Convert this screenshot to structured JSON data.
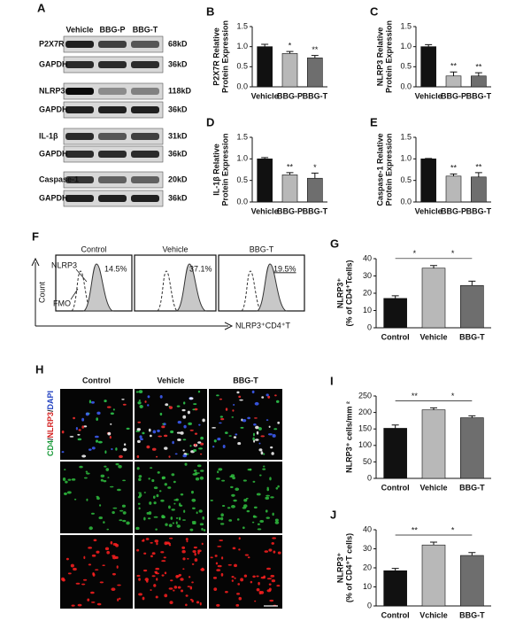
{
  "blot": {
    "panel": "A",
    "lanes": [
      "Vehicle",
      "BBG-P",
      "BBG-T"
    ],
    "rows": [
      {
        "label": "P2X7R",
        "size": "68kD"
      },
      {
        "label": "GAPDH",
        "size": "36kD"
      },
      {
        "label": "NLRP3",
        "size": "118kD"
      },
      {
        "label": "GAPDH",
        "size": "36kD"
      },
      {
        "label": "IL-1β",
        "size": "31kD"
      },
      {
        "label": "GAPDH",
        "size": "36kD"
      },
      {
        "label": "Caspase-1",
        "size": "20kD"
      },
      {
        "label": "GAPDH",
        "size": "36kD"
      }
    ]
  },
  "flow": {
    "panel": "F",
    "groups": [
      "Control",
      "Vehicle",
      "BBG-T"
    ],
    "percents": [
      "14.5%",
      "37.1%",
      "19.5%"
    ],
    "curve_labels": [
      "NLRP3",
      "FMO"
    ],
    "y_label": "Count",
    "x_label": "NLRP3⁺CD4⁺T"
  },
  "micro": {
    "panel": "H",
    "columns": [
      "Control",
      "Vehicle",
      "BBG-T"
    ],
    "row_label": [
      {
        "text": "CD4",
        "color": "#1a9a3a"
      },
      {
        "text": "/",
        "color": "#222222"
      },
      {
        "text": "NLRP3",
        "color": "#d42020"
      },
      {
        "text": "/",
        "color": "#222222"
      },
      {
        "text": "DAPI",
        "color": "#2040c0"
      }
    ]
  },
  "chart_data": [
    {
      "type": "bar",
      "panel": "B",
      "y_label": [
        "P2X7R Relative",
        "Protein Expression"
      ],
      "categories": [
        "Vehicle",
        "BBG-P",
        "BBG-T"
      ],
      "values": [
        1.0,
        0.83,
        0.72
      ],
      "errors": [
        0.06,
        0.05,
        0.06
      ],
      "colors": [
        "#111111",
        "#b8b8b8",
        "#6e6e6e"
      ],
      "sig": [
        null,
        "*",
        "**"
      ],
      "ylim": [
        0,
        1.5
      ],
      "yticks": [
        {
          "value": 0,
          "label": "0.0"
        },
        {
          "value": 0.5,
          "label": "0.5"
        },
        {
          "value": 1,
          "label": "1.0"
        },
        {
          "value": 1.5,
          "label": "1.5"
        }
      ]
    },
    {
      "type": "bar",
      "panel": "C",
      "y_label": [
        "NLRP3 Relative",
        "Protein Expression"
      ],
      "categories": [
        "Vehicle",
        "BBG-P",
        "BBG-T"
      ],
      "values": [
        1.0,
        0.27,
        0.27
      ],
      "errors": [
        0.05,
        0.1,
        0.08
      ],
      "colors": [
        "#111111",
        "#b8b8b8",
        "#6e6e6e"
      ],
      "sig": [
        null,
        "**",
        "**"
      ],
      "ylim": [
        0,
        1.5
      ],
      "yticks": [
        {
          "value": 0,
          "label": "0.0"
        },
        {
          "value": 0.5,
          "label": "0.5"
        },
        {
          "value": 1,
          "label": "1.0"
        },
        {
          "value": 1.5,
          "label": "1.5"
        }
      ]
    },
    {
      "type": "bar",
      "panel": "D",
      "y_label": [
        "IL-1β Relative",
        "Protein Expression"
      ],
      "categories": [
        "Vehicle",
        "BBG-P",
        "BBG-T"
      ],
      "values": [
        1.0,
        0.63,
        0.55
      ],
      "errors": [
        0.03,
        0.05,
        0.12
      ],
      "colors": [
        "#111111",
        "#b8b8b8",
        "#6e6e6e"
      ],
      "sig": [
        null,
        "**",
        "*"
      ],
      "ylim": [
        0,
        1.5
      ],
      "yticks": [
        {
          "value": 0,
          "label": "0.0"
        },
        {
          "value": 0.5,
          "label": "0.5"
        },
        {
          "value": 1,
          "label": "1.0"
        },
        {
          "value": 1.5,
          "label": "1.5"
        }
      ]
    },
    {
      "type": "bar",
      "panel": "E",
      "y_label": [
        "Caspase-1 Relative",
        "Protein Expression"
      ],
      "categories": [
        "Vehicle",
        "BBG-P",
        "BBG-T"
      ],
      "values": [
        1.0,
        0.6,
        0.58
      ],
      "errors": [
        0.01,
        0.05,
        0.1
      ],
      "colors": [
        "#111111",
        "#b8b8b8",
        "#6e6e6e"
      ],
      "sig": [
        null,
        "**",
        "**"
      ],
      "ylim": [
        0,
        1.5
      ],
      "yticks": [
        {
          "value": 0,
          "label": "0.0"
        },
        {
          "value": 0.5,
          "label": "0.5"
        },
        {
          "value": 1,
          "label": "1.0"
        },
        {
          "value": 1.5,
          "label": "1.5"
        }
      ]
    },
    {
      "type": "bar",
      "panel": "G",
      "y_label": [
        "NLRP3⁺",
        "(% of CD4⁺Tcells)"
      ],
      "categories": [
        "Control",
        "Vehicle",
        "BBG-T"
      ],
      "values": [
        17,
        34.5,
        24.5
      ],
      "errors": [
        1.5,
        1.5,
        2.5
      ],
      "colors": [
        "#111111",
        "#b8b8b8",
        "#6e6e6e"
      ],
      "brackets": [
        {
          "from": 0,
          "to": 1,
          "text": "*"
        },
        {
          "from": 1,
          "to": 2,
          "text": "*"
        }
      ],
      "ylim": [
        0,
        40
      ],
      "yticks": [
        0,
        10,
        20,
        30,
        40
      ]
    },
    {
      "type": "bar",
      "panel": "I",
      "y_label": [
        "NLRP3⁺ cells/mm ²"
      ],
      "categories": [
        "Control",
        "Vehicle",
        "BBG-T"
      ],
      "values": [
        152,
        208,
        184
      ],
      "errors": [
        10,
        6,
        6
      ],
      "colors": [
        "#111111",
        "#b8b8b8",
        "#6e6e6e"
      ],
      "brackets": [
        {
          "from": 0,
          "to": 1,
          "text": "**"
        },
        {
          "from": 1,
          "to": 2,
          "text": "*"
        }
      ],
      "ylim": [
        0,
        250
      ],
      "yticks": [
        0,
        50,
        100,
        150,
        200,
        250
      ]
    },
    {
      "type": "bar",
      "panel": "J",
      "y_label": [
        "NLRP3⁺",
        "(% of CD4⁺T cells)"
      ],
      "categories": [
        "Control",
        "Vchicle",
        "BBG-T"
      ],
      "values": [
        18.5,
        32,
        26.5
      ],
      "errors": [
        1.2,
        1.5,
        1.5
      ],
      "colors": [
        "#111111",
        "#b8b8b8",
        "#6e6e6e"
      ],
      "brackets": [
        {
          "from": 0,
          "to": 1,
          "text": "**"
        },
        {
          "from": 1,
          "to": 2,
          "text": "*"
        }
      ],
      "ylim": [
        0,
        40
      ],
      "yticks": [
        0,
        10,
        20,
        30,
        40
      ]
    }
  ]
}
